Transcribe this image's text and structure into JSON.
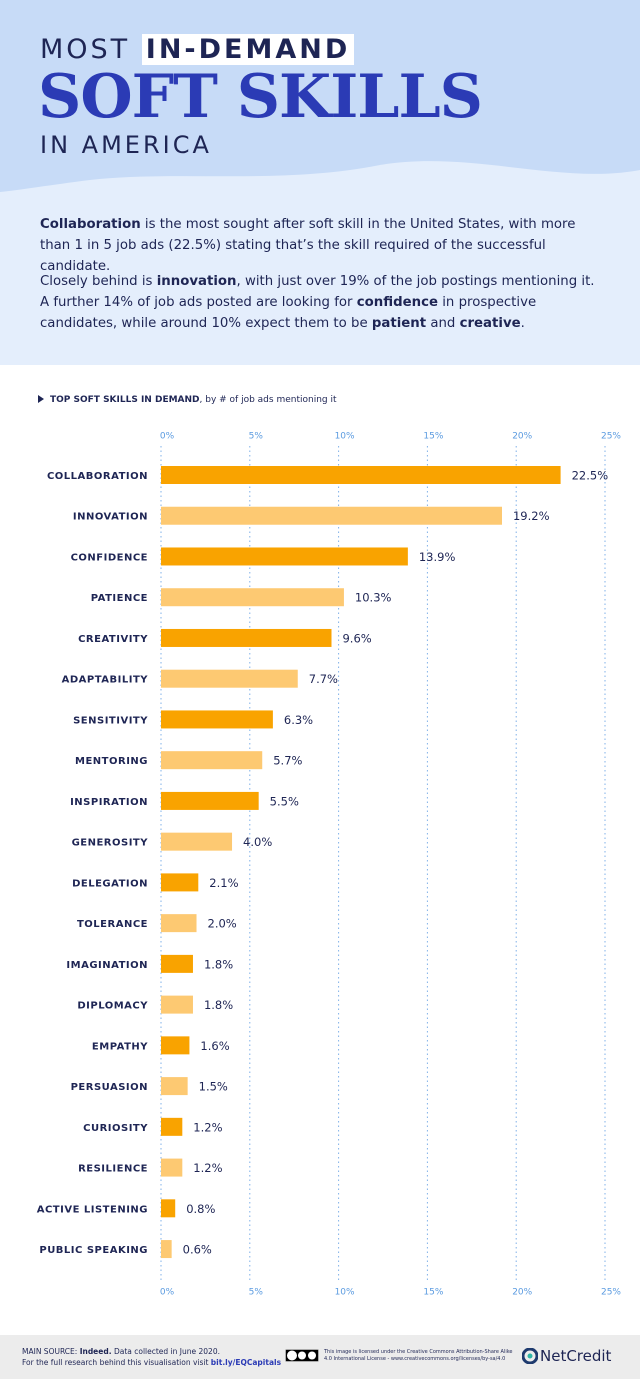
{
  "header": {
    "line1": "MOST",
    "highlight": "IN-DEMAND",
    "title": "SOFT SKILLS",
    "line3": "IN AMERICA"
  },
  "intro": {
    "p1": [
      "Collaboration",
      " is the most sought after soft skill in the United States, with more than 1 in 5 job ads (22.5%) stating that’s the skill required of the successful candidate."
    ],
    "p2": [
      "Closely behind is ",
      "innovation",
      ", with just over 19% of the job postings mentioning it. A further 14% of job ads posted are looking for ",
      "confidence",
      " in prospective candidates, while around 10% expect them to be ",
      "patient",
      " and ",
      "creative",
      "."
    ]
  },
  "chart_data": {
    "type": "hbar",
    "title": "TOP SOFT SKILLS IN DEMAND",
    "subtitle": ", by # of job ads mentioning it",
    "categories": [
      "COLLABORATION",
      "INNOVATION",
      "CONFIDENCE",
      "PATIENCE",
      "CREATIVITY",
      "ADAPTABILITY",
      "SENSITIVITY",
      "MENTORING",
      "INSPIRATION",
      "GENEROSITY",
      "DELEGATION",
      "TOLERANCE",
      "IMAGINATION",
      "DIPLOMACY",
      "EMPATHY",
      "PERSUASION",
      "CURIOSITY",
      "RESILIENCE",
      "ACTIVE LISTENING",
      "PUBLIC SPEAKING"
    ],
    "values": [
      22.5,
      19.2,
      13.9,
      10.3,
      9.6,
      7.7,
      6.3,
      5.7,
      5.5,
      4.0,
      2.1,
      2.0,
      1.8,
      1.8,
      1.6,
      1.5,
      1.2,
      1.2,
      0.8,
      0.6
    ],
    "value_labels": [
      "22.5%",
      "19.2%",
      "13.9%",
      "10.3%",
      "9.6%",
      "7.7%",
      "6.3%",
      "5.7%",
      "5.5%",
      "4.0%",
      "2.1%",
      "2.0%",
      "1.8%",
      "1.8%",
      "1.6%",
      "1.5%",
      "1.2%",
      "1.2%",
      "0.8%",
      "0.6%"
    ],
    "colors": [
      "#f9a300",
      "#fdc972"
    ],
    "xlim": [
      0,
      25
    ],
    "xticks": [
      {
        "value": 0,
        "label": "0%"
      },
      {
        "value": 5,
        "label": "5%"
      },
      {
        "value": 10,
        "label": "10%"
      },
      {
        "value": 15,
        "label": "15%"
      },
      {
        "value": 20,
        "label": "20%"
      },
      {
        "value": 25,
        "label": "25%"
      }
    ],
    "grid": true
  },
  "footer": {
    "source": [
      "MAIN SOURCE: ",
      "Indeed.",
      " Data collected in June 2020."
    ],
    "research": [
      "For the full research behind this visualisation visit ",
      "bit.ly/EQCapitals"
    ],
    "license": [
      "This image is licensed under the Creative Commons Attribution-Share Alike",
      "4.0 International License - www.creativecommons.org/licenses/by-sa/4.0"
    ],
    "brand": "NetCredit"
  }
}
